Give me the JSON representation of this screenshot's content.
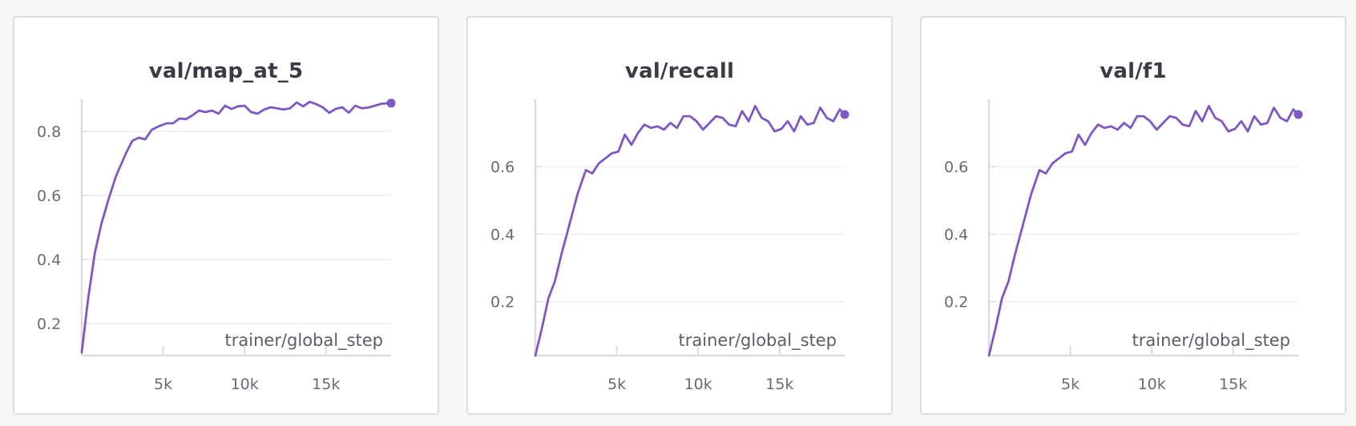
{
  "colors": {
    "line": "#7e57c2",
    "grid": "#ececee",
    "axis": "#dcdce0",
    "background": "#ffffff"
  },
  "chart_data": [
    {
      "type": "line",
      "title": "val/map_at_5",
      "xlabel": "trainer/global_step",
      "ylabel": "",
      "xlim": [
        0,
        19000
      ],
      "ylim": [
        0.1,
        0.9
      ],
      "xticks": [
        5000,
        10000,
        15000
      ],
      "xtick_labels": [
        "5k",
        "10k",
        "15k"
      ],
      "yticks": [
        0.2,
        0.4,
        0.6,
        0.8
      ],
      "ytick_labels": [
        "0.2",
        "0.4",
        "0.6",
        "0.8"
      ],
      "grid": true,
      "series": [
        {
          "x": [
            0,
            400,
            800,
            1200,
            1600,
            2100,
            2700,
            3100,
            3500,
            3900,
            4300,
            4700,
            5200,
            5600,
            6000,
            6400,
            6800,
            7200,
            7600,
            8000,
            8400,
            8800,
            9200,
            9600,
            10000,
            10400,
            10800,
            11200,
            11600,
            12000,
            12400,
            12800,
            13200,
            13600,
            14000,
            14400,
            14800,
            15200,
            15600,
            16000,
            16400,
            16800,
            17200,
            17600,
            18000,
            18400,
            18800,
            19000
          ],
          "y": [
            0.11,
            0.28,
            0.42,
            0.51,
            0.58,
            0.66,
            0.73,
            0.77,
            0.78,
            0.775,
            0.805,
            0.815,
            0.825,
            0.825,
            0.84,
            0.838,
            0.85,
            0.865,
            0.86,
            0.865,
            0.855,
            0.88,
            0.87,
            0.878,
            0.88,
            0.86,
            0.855,
            0.868,
            0.875,
            0.872,
            0.868,
            0.872,
            0.89,
            0.878,
            0.892,
            0.885,
            0.875,
            0.858,
            0.87,
            0.875,
            0.858,
            0.88,
            0.872,
            0.874,
            0.88,
            0.886,
            0.888,
            0.888
          ]
        }
      ]
    },
    {
      "type": "line",
      "title": "val/recall",
      "xlabel": "trainer/global_step",
      "ylabel": "",
      "xlim": [
        0,
        19000
      ],
      "ylim": [
        0.04,
        0.8
      ],
      "xticks": [
        5000,
        10000,
        15000
      ],
      "xtick_labels": [
        "5k",
        "10k",
        "15k"
      ],
      "yticks": [
        0.2,
        0.4,
        0.6
      ],
      "ytick_labels": [
        "0.2",
        "0.4",
        "0.6"
      ],
      "grid": true,
      "series": [
        {
          "x": [
            0,
            400,
            800,
            1200,
            1600,
            2100,
            2600,
            3100,
            3500,
            3900,
            4300,
            4700,
            5100,
            5500,
            5900,
            6300,
            6700,
            7100,
            7500,
            7900,
            8300,
            8700,
            9100,
            9500,
            9900,
            10300,
            10700,
            11100,
            11500,
            11900,
            12300,
            12700,
            13100,
            13500,
            13900,
            14300,
            14700,
            15100,
            15500,
            15900,
            16300,
            16700,
            17100,
            17500,
            17900,
            18300,
            18700,
            19000
          ],
          "y": [
            0.04,
            0.12,
            0.21,
            0.26,
            0.34,
            0.43,
            0.52,
            0.59,
            0.58,
            0.61,
            0.625,
            0.64,
            0.645,
            0.695,
            0.665,
            0.7,
            0.725,
            0.715,
            0.72,
            0.71,
            0.73,
            0.715,
            0.75,
            0.75,
            0.735,
            0.71,
            0.73,
            0.75,
            0.745,
            0.725,
            0.72,
            0.765,
            0.735,
            0.78,
            0.745,
            0.735,
            0.705,
            0.712,
            0.735,
            0.705,
            0.75,
            0.725,
            0.73,
            0.775,
            0.745,
            0.735,
            0.77,
            0.755
          ]
        }
      ]
    },
    {
      "type": "line",
      "title": "val/f1",
      "xlabel": "trainer/global_step",
      "ylabel": "",
      "xlim": [
        0,
        19000
      ],
      "ylim": [
        0.04,
        0.8
      ],
      "xticks": [
        5000,
        10000,
        15000
      ],
      "xtick_labels": [
        "5k",
        "10k",
        "15k"
      ],
      "yticks": [
        0.2,
        0.4,
        0.6
      ],
      "ytick_labels": [
        "0.2",
        "0.4",
        "0.6"
      ],
      "grid": true,
      "series": [
        {
          "x": [
            0,
            400,
            800,
            1200,
            1600,
            2100,
            2600,
            3100,
            3500,
            3900,
            4300,
            4700,
            5100,
            5500,
            5900,
            6300,
            6700,
            7100,
            7500,
            7900,
            8300,
            8700,
            9100,
            9500,
            9900,
            10300,
            10700,
            11100,
            11500,
            11900,
            12300,
            12700,
            13100,
            13500,
            13900,
            14300,
            14700,
            15100,
            15500,
            15900,
            16300,
            16700,
            17100,
            17500,
            17900,
            18300,
            18700,
            19000
          ],
          "y": [
            0.04,
            0.12,
            0.21,
            0.26,
            0.34,
            0.43,
            0.52,
            0.59,
            0.58,
            0.61,
            0.625,
            0.64,
            0.645,
            0.695,
            0.665,
            0.7,
            0.725,
            0.715,
            0.72,
            0.71,
            0.73,
            0.715,
            0.75,
            0.75,
            0.735,
            0.71,
            0.73,
            0.75,
            0.745,
            0.725,
            0.72,
            0.765,
            0.735,
            0.78,
            0.745,
            0.735,
            0.705,
            0.712,
            0.735,
            0.705,
            0.75,
            0.725,
            0.73,
            0.775,
            0.745,
            0.735,
            0.77,
            0.755
          ]
        }
      ]
    }
  ]
}
